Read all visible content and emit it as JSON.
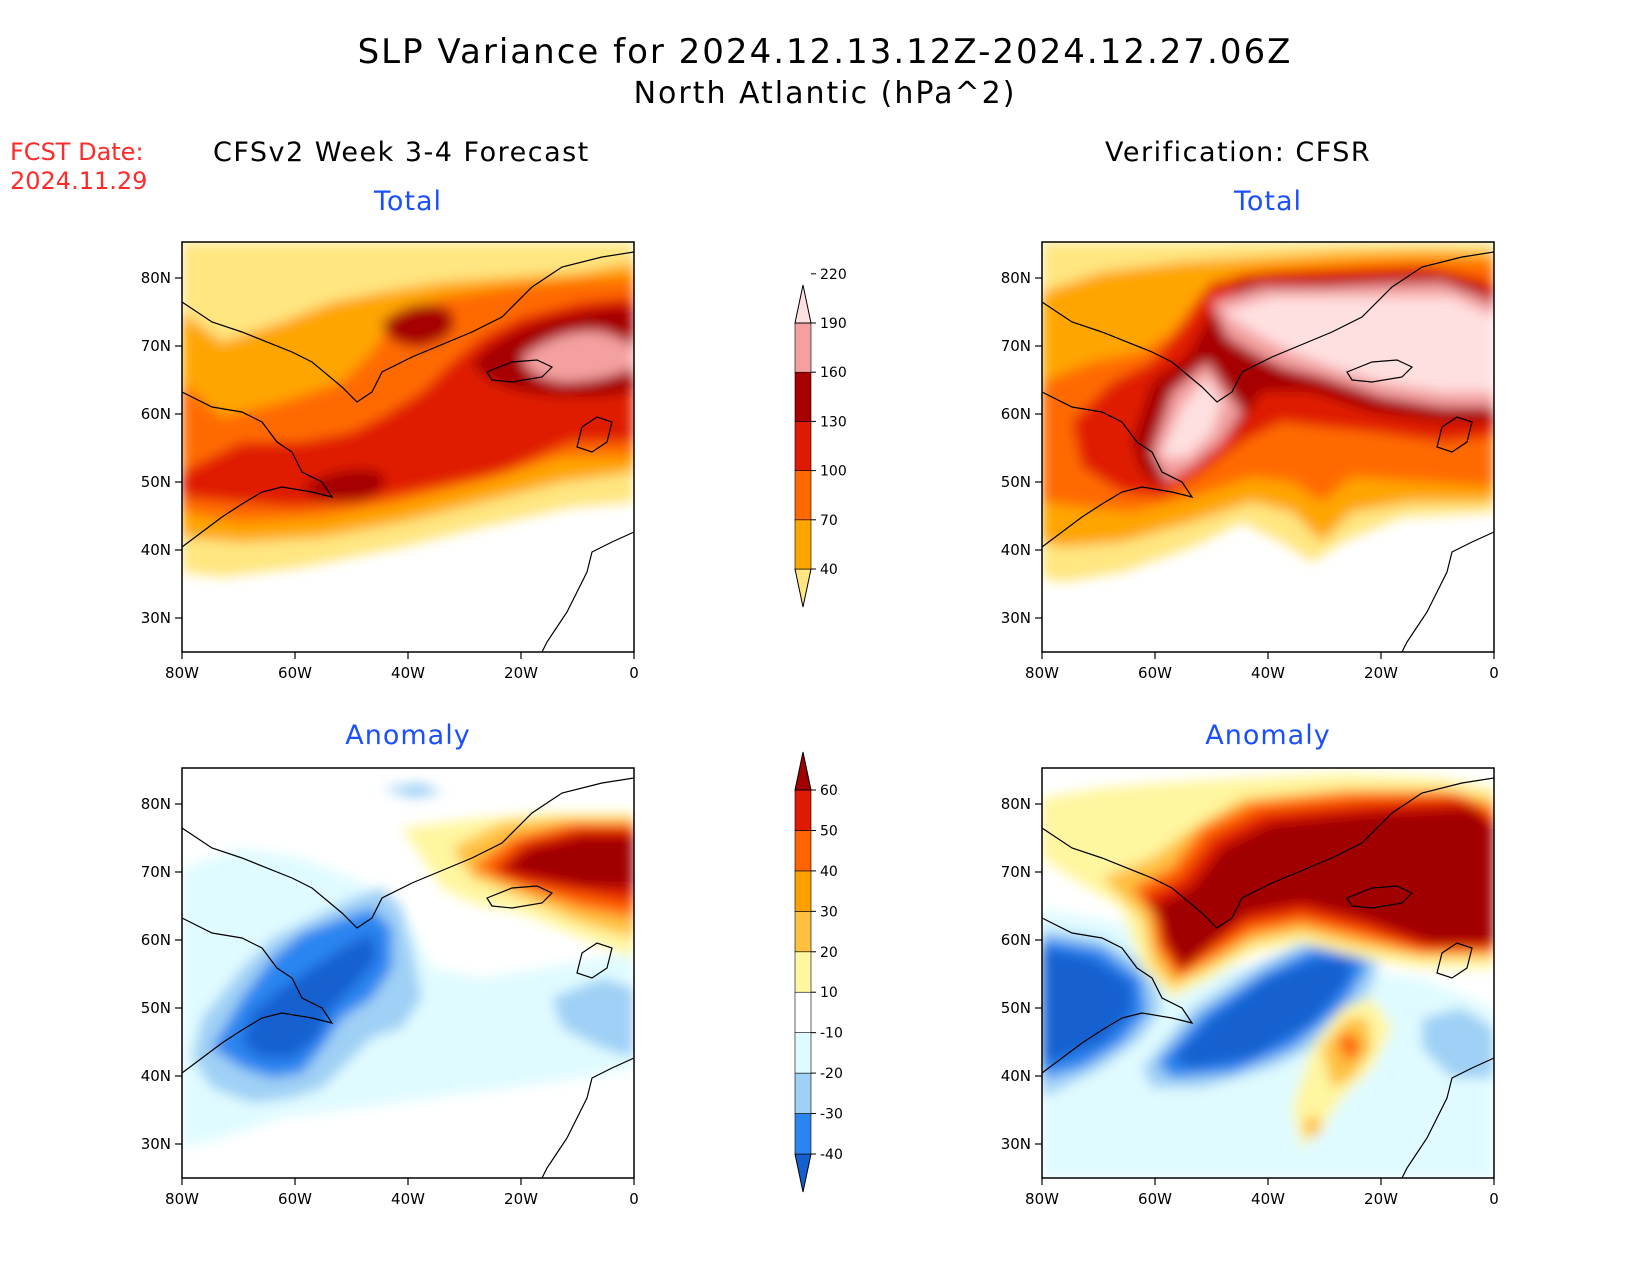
{
  "title": {
    "line1": "SLP Variance for 2024.12.13.12Z-2024.12.27.06Z",
    "line2": "North Atlantic (hPa^2)"
  },
  "fcst_date": {
    "label": "FCST Date:",
    "value": "2024.11.29"
  },
  "columns": {
    "left_header": "CFSv2 Week 3-4 Forecast",
    "right_header": "Verification: CFSR"
  },
  "panels": [
    {
      "id": "forecast-total",
      "subtitle": "Total"
    },
    {
      "id": "verification-total",
      "subtitle": "Total"
    },
    {
      "id": "forecast-anomaly",
      "subtitle": "Anomaly"
    },
    {
      "id": "verification-anomaly",
      "subtitle": "Anomaly"
    }
  ],
  "axes": {
    "lon_ticks": [
      "80W",
      "60W",
      "40W",
      "20W",
      "0"
    ],
    "lat_ticks": [
      "80N",
      "70N",
      "60N",
      "50N",
      "40N",
      "30N"
    ]
  },
  "colorbars": {
    "total": {
      "levels": [
        "40",
        "70",
        "100",
        "130",
        "160",
        "190",
        "220"
      ],
      "colors": [
        "#ffe680",
        "#ffa500",
        "#ff6a00",
        "#e01a00",
        "#a60000",
        "#f4a0a0",
        "#ffe0e0"
      ]
    },
    "anomaly": {
      "levels": [
        "-40",
        "-30",
        "-20",
        "-10",
        "10",
        "20",
        "30",
        "40",
        "50",
        "60"
      ],
      "colors": [
        "#1560d0",
        "#2a85f0",
        "#9fd0f5",
        "#e0fbff",
        "#ffffff",
        "#fff6a0",
        "#ffc040",
        "#ffa000",
        "#ff6400",
        "#e01a00",
        "#a00000"
      ]
    }
  }
}
